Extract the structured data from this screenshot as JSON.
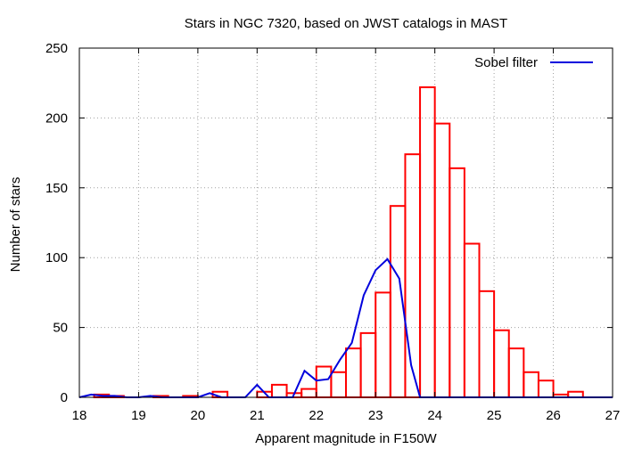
{
  "chart_data": {
    "type": "bar",
    "title": "Stars in NGC 7320, based on JWST catalogs in MAST",
    "xlabel": "Apparent magnitude in F150W",
    "ylabel": "Number of stars",
    "xlim": [
      18,
      27
    ],
    "ylim": [
      0,
      250
    ],
    "xticks": [
      18,
      19,
      20,
      21,
      22,
      23,
      24,
      25,
      26,
      27
    ],
    "yticks": [
      0,
      50,
      100,
      150,
      200,
      250
    ],
    "grid": true,
    "legend_position": "top-right",
    "colors": {
      "histogram": "#ff0000",
      "line": "#0000dd",
      "grid": "#a0a0a0"
    },
    "histogram": {
      "bin_width": 0.25,
      "bins": [
        {
          "x0": 18.25,
          "count": 2
        },
        {
          "x0": 18.5,
          "count": 1
        },
        {
          "x0": 19.25,
          "count": 1
        },
        {
          "x0": 19.75,
          "count": 1
        },
        {
          "x0": 20.25,
          "count": 4
        },
        {
          "x0": 20.5,
          "count": 0
        },
        {
          "x0": 20.75,
          "count": 0
        },
        {
          "x0": 21.0,
          "count": 4
        },
        {
          "x0": 21.25,
          "count": 9
        },
        {
          "x0": 21.5,
          "count": 3
        },
        {
          "x0": 21.75,
          "count": 6
        },
        {
          "x0": 22.0,
          "count": 22
        },
        {
          "x0": 22.25,
          "count": 18
        },
        {
          "x0": 22.5,
          "count": 35
        },
        {
          "x0": 22.75,
          "count": 46
        },
        {
          "x0": 23.0,
          "count": 75
        },
        {
          "x0": 23.25,
          "count": 137
        },
        {
          "x0": 23.5,
          "count": 174
        },
        {
          "x0": 23.75,
          "count": 222
        },
        {
          "x0": 24.0,
          "count": 196
        },
        {
          "x0": 24.25,
          "count": 164
        },
        {
          "x0": 24.5,
          "count": 110
        },
        {
          "x0": 24.75,
          "count": 76
        },
        {
          "x0": 25.0,
          "count": 48
        },
        {
          "x0": 25.25,
          "count": 35
        },
        {
          "x0": 25.5,
          "count": 18
        },
        {
          "x0": 25.75,
          "count": 12
        },
        {
          "x0": 26.0,
          "count": 2
        },
        {
          "x0": 26.25,
          "count": 4
        }
      ]
    },
    "series": [
      {
        "name": "Sobel filter",
        "x": [
          18.0,
          18.2,
          18.4,
          18.6,
          18.8,
          19.0,
          19.2,
          19.4,
          19.6,
          19.8,
          20.0,
          20.2,
          20.4,
          20.6,
          20.8,
          21.0,
          21.2,
          21.4,
          21.6,
          21.8,
          22.0,
          22.2,
          22.4,
          22.6,
          22.8,
          23.0,
          23.2,
          23.4,
          23.6,
          23.75,
          24.0,
          24.5,
          25.0,
          26.0,
          27.0
        ],
        "y": [
          0,
          2,
          1,
          1,
          0,
          0,
          1,
          0,
          0,
          0,
          0,
          3,
          0,
          0,
          0,
          9,
          0,
          0,
          0,
          19,
          12,
          13,
          27,
          39,
          73,
          91,
          99,
          85,
          23,
          0,
          0,
          0,
          0,
          0,
          0
        ]
      }
    ]
  }
}
